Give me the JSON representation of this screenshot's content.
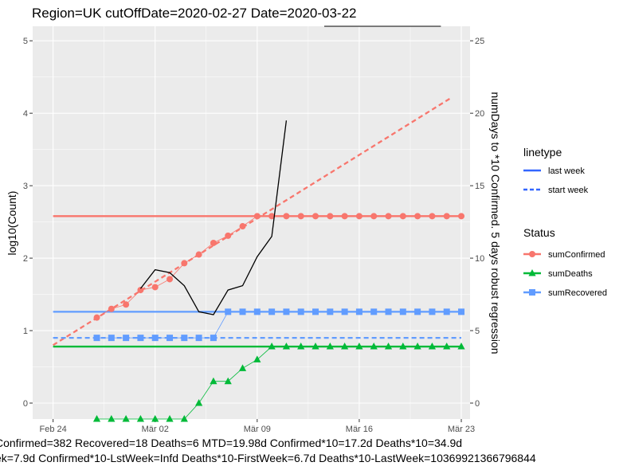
{
  "chart_data": {
    "type": "line",
    "title": "Region=UK cutOffDate=2020-02-27 Date=2020-03-22",
    "ylabel": "log10(Count)",
    "y2label": "numDays to *10 Confirmed. 5 days robust regression",
    "x_tick_labels": [
      "Feb 24",
      "Mär 02",
      "Mär 09",
      "Mär 16",
      "Mär 23"
    ],
    "x_ticks_day": [
      0,
      7,
      14,
      21,
      28
    ],
    "xlim_day": [
      -1.4,
      28.6
    ],
    "ylim": [
      -0.22,
      5.2
    ],
    "yticks": [
      0,
      1,
      2,
      3,
      4,
      5
    ],
    "y2lim": [
      -1.1,
      26
    ],
    "y2ticks": [
      0,
      5,
      10,
      15,
      20,
      25
    ],
    "grid": true,
    "legend_position": "right",
    "legends": [
      {
        "title": "linetype",
        "entries": [
          "last week",
          "start week"
        ]
      },
      {
        "title": "Status",
        "entries": [
          "sumConfirmed",
          "sumDeaths",
          "sumRecovered"
        ]
      }
    ],
    "colors": {
      "sumConfirmed": "#F8766D",
      "sumDeaths": "#00BA38",
      "sumRecovered": "#619CFF",
      "numDays": "#000000",
      "panel": "#EBEBEB",
      "grid": "#FFFFFF"
    },
    "series": [
      {
        "name": "sumConfirmed",
        "marker": "circle",
        "x": [
          3,
          4,
          5,
          6,
          7,
          8,
          9,
          10,
          11,
          12,
          13,
          14,
          15,
          16,
          17,
          18,
          19,
          20,
          21,
          22,
          23,
          24,
          25,
          26,
          27,
          28
        ],
        "values": [
          1.18,
          1.3,
          1.36,
          1.56,
          1.6,
          1.71,
          1.93,
          2.05,
          2.21,
          2.31,
          2.44,
          2.58,
          2.58,
          2.58,
          2.58,
          2.58,
          2.58,
          2.58,
          2.58,
          2.58,
          2.58,
          2.58,
          2.58,
          2.58,
          2.58,
          2.58
        ]
      },
      {
        "name": "sumDeaths",
        "marker": "triangle",
        "x": [
          3,
          4,
          5,
          6,
          7,
          8,
          9,
          10,
          11,
          12,
          13,
          14,
          15,
          16,
          17,
          18,
          19,
          20,
          21,
          22,
          23,
          24,
          25,
          26,
          27,
          28
        ],
        "values": [
          -0.22,
          -0.22,
          -0.22,
          -0.22,
          -0.22,
          -0.22,
          -0.22,
          0,
          0.3,
          0.3,
          0.48,
          0.6,
          0.78,
          0.78,
          0.78,
          0.78,
          0.78,
          0.78,
          0.78,
          0.78,
          0.78,
          0.78,
          0.78,
          0.78,
          0.78,
          0.78
        ]
      },
      {
        "name": "sumRecovered",
        "marker": "square",
        "x": [
          3,
          4,
          5,
          6,
          7,
          8,
          9,
          10,
          11,
          12,
          13,
          14,
          15,
          16,
          17,
          18,
          19,
          20,
          21,
          22,
          23,
          24,
          25,
          26,
          27,
          28
        ],
        "values": [
          0.9,
          0.9,
          0.9,
          0.9,
          0.9,
          0.9,
          0.9,
          0.9,
          0.9,
          1.26,
          1.26,
          1.26,
          1.26,
          1.26,
          1.26,
          1.26,
          1.26,
          1.26,
          1.26,
          1.26,
          1.26,
          1.26,
          1.26,
          1.26,
          1.26,
          1.26
        ]
      }
    ],
    "reference_lines": [
      {
        "status": "sumConfirmed",
        "linetype": "last week",
        "x": [
          0,
          28
        ],
        "values": [
          2.58,
          2.58
        ]
      },
      {
        "status": "sumConfirmed",
        "linetype": "start week",
        "x": [
          0,
          27.2
        ],
        "values": [
          0.8,
          4.2
        ]
      },
      {
        "status": "sumRecovered",
        "linetype": "last week",
        "x": [
          0,
          28
        ],
        "values": [
          1.26,
          1.26
        ]
      },
      {
        "status": "sumRecovered",
        "linetype": "start week",
        "x": [
          0,
          28
        ],
        "values": [
          0.9,
          0.9
        ]
      },
      {
        "status": "sumDeaths",
        "linetype": "last week",
        "x": [
          0,
          28
        ],
        "values": [
          0.78,
          0.78
        ]
      }
    ],
    "numDays_series": {
      "axis": "secondary",
      "x": [
        6,
        7,
        8,
        9,
        10,
        11,
        12,
        13,
        14,
        15,
        16
      ],
      "values": [
        7.9,
        9.2,
        9.0,
        8.1,
        6.3,
        6.1,
        7.8,
        8.1,
        10.1,
        11.5,
        19.5
      ]
    },
    "top_segment": {
      "x": [
        18.6,
        26.6
      ],
      "y2": 26.0
    },
    "footer_lines": [
      "Confirmed=382 Recovered=18 Deaths=6  MTD=19.98d   Confirmed*10=17.2d  Deaths*10=34.9d",
      "ek=7.9d  Confirmed*10-LstWeek=Infd    Deaths*10-FirstWeek=6.7d  Deaths*10-LastWeek=10369921366796844"
    ]
  }
}
